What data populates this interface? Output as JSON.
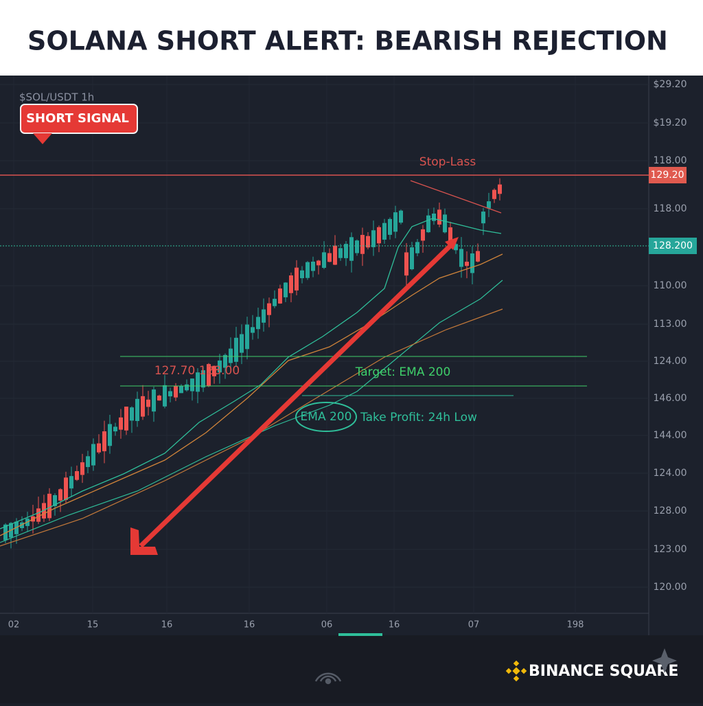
{
  "header": {
    "title": "SOLANA SHORT ALERT: BEARISH REJECTION"
  },
  "chart": {
    "symbol": "$SOL/USDT 1h",
    "badge": "SHORT SIGNAL",
    "price_labels": [
      "$29.20",
      "$19.20",
      "118.00",
      "118.00",
      "110.00",
      "113.00",
      "124.00",
      "146.00",
      "144.00",
      "124.00",
      "128.00",
      "123.00",
      "120.00"
    ],
    "stop_price": "129.20",
    "current_price": "128.200",
    "time_labels": [
      "02",
      "15",
      "16",
      "16",
      "06",
      "16",
      "07",
      "198"
    ],
    "annotations": {
      "stop_loss": "Stop-Lass",
      "entry": "127.70 128.00",
      "target": "Target: EMA 200",
      "ema": "EMA 200",
      "take_profit": "Take Profit: 24h Low"
    }
  },
  "footer": {
    "brand": "BINANCE SQUARE"
  }
}
